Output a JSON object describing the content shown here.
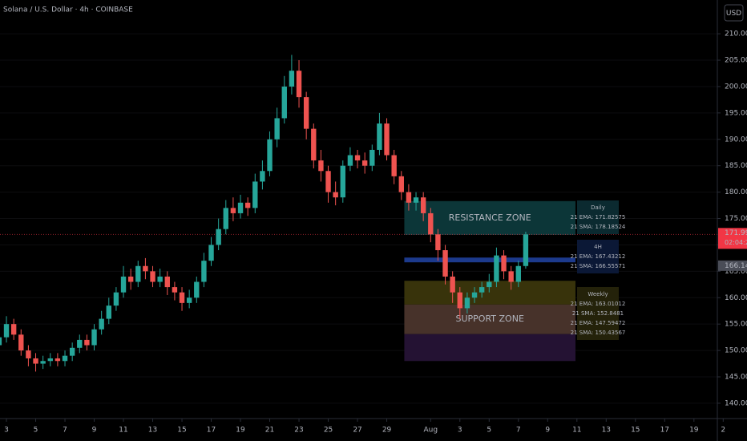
{
  "chart_data": {
    "type": "candlestick",
    "title": "Solana / U.S. Dollar · 4h · COINBASE",
    "currency": "USD",
    "x": [
      2.5,
      3,
      3.5,
      4,
      4.5,
      5,
      5.5,
      6,
      6.5,
      7,
      7.5,
      8,
      8.5,
      9,
      9.5,
      10,
      10.5,
      11,
      11.5,
      12,
      12.5,
      13,
      13.5,
      14,
      14.5,
      15,
      15.5,
      16,
      16.5,
      17,
      17.5,
      18,
      18.5,
      19,
      19.5,
      20,
      20.5,
      21,
      21.5,
      22,
      22.5,
      23,
      23.5,
      24,
      24.5,
      25,
      25.5,
      26,
      26.5,
      27,
      27.5,
      28,
      28.5,
      29,
      29.5,
      30,
      30.5,
      31,
      31.5,
      32,
      32.5,
      33,
      33.5,
      34,
      34.5,
      35,
      35.5,
      36,
      36.5,
      37,
      37.5,
      38,
      38.5
    ],
    "open": [
      151,
      152.5,
      155,
      153,
      150,
      148.5,
      147.5,
      148,
      148.5,
      148,
      149,
      150.5,
      152,
      151,
      154,
      156,
      158.5,
      161,
      164,
      163,
      166,
      165,
      163,
      164,
      162,
      161,
      159,
      160,
      163,
      167,
      170,
      173,
      177,
      176,
      178,
      177,
      182,
      184,
      190,
      194,
      200,
      203,
      198,
      192,
      186,
      184,
      180,
      179,
      185,
      187,
      186,
      185,
      188,
      193,
      187,
      183,
      180,
      178,
      179,
      176,
      172,
      169,
      164,
      161,
      158,
      160,
      161,
      162,
      163,
      168,
      165,
      163,
      166
    ],
    "high": [
      154,
      156.5,
      156,
      154,
      151,
      149.5,
      149,
      149.5,
      149.5,
      150,
      151.5,
      153,
      153,
      155,
      157.5,
      160,
      162,
      166,
      165.5,
      167,
      167.5,
      166,
      165.5,
      165,
      163,
      162,
      161.5,
      164,
      168.5,
      171.5,
      175,
      178.5,
      179,
      179.5,
      179,
      183.5,
      186,
      191.5,
      196,
      202,
      206,
      205,
      199,
      193,
      188,
      185,
      182,
      186,
      188.5,
      188,
      187.5,
      189,
      195,
      194,
      188,
      184,
      181.5,
      180,
      180,
      177,
      173,
      170,
      165,
      162,
      161,
      162,
      163,
      164.5,
      169.5,
      169,
      166,
      167,
      172.5
    ],
    "low": [
      150,
      151.5,
      152,
      149,
      147,
      146,
      146.5,
      147,
      147,
      147,
      148,
      149.5,
      150,
      150,
      153,
      155,
      157.5,
      160,
      161.5,
      162,
      163.5,
      162,
      162,
      160.5,
      159.5,
      157.5,
      158,
      159,
      162,
      166,
      169,
      172,
      174.5,
      175,
      175.5,
      176,
      180.5,
      183,
      188.5,
      193,
      198.5,
      196,
      190,
      184.5,
      182,
      178,
      177.5,
      178,
      184,
      184.5,
      183.5,
      184,
      187,
      186,
      181.5,
      178.5,
      176.5,
      176.5,
      174.5,
      170.5,
      167,
      162.5,
      159,
      156,
      157,
      159,
      160,
      161,
      162,
      163.5,
      161.5,
      162,
      165.5
    ],
    "close": [
      152.5,
      155,
      153,
      150,
      148.5,
      147.5,
      148,
      148.5,
      148,
      149,
      150.5,
      152,
      151,
      154,
      156,
      158.5,
      161,
      164,
      163,
      166,
      165,
      163,
      164,
      162,
      161,
      159,
      160,
      163,
      167,
      170,
      173,
      177,
      176,
      178,
      177,
      182,
      184,
      190,
      194,
      200,
      203,
      198,
      192,
      186,
      184,
      180,
      179,
      185,
      187,
      186,
      185,
      188,
      193,
      187,
      183,
      180,
      178,
      179,
      176,
      172,
      169,
      164,
      161,
      158,
      160,
      161,
      162,
      163,
      168,
      165,
      163,
      166,
      171.99
    ],
    "up_color": "#26a69a",
    "down_color": "#ef5350",
    "xlim": [
      2.56,
      51.6
    ],
    "xticks": [
      3,
      5,
      7,
      9,
      11,
      13,
      15,
      17,
      19,
      21,
      23,
      25,
      27,
      29,
      {
        "value": 32,
        "label": "Aug"
      },
      {
        "value": 34,
        "label": "3"
      },
      {
        "value": 36,
        "label": "5"
      },
      {
        "value": 38,
        "label": "7"
      },
      {
        "value": 40,
        "label": "9"
      },
      {
        "value": 42,
        "label": "11"
      },
      {
        "value": 44,
        "label": "13"
      },
      {
        "value": 46,
        "label": "15"
      },
      {
        "value": 48,
        "label": "17"
      },
      {
        "value": 50,
        "label": "19"
      },
      {
        "value": 52,
        "label": "2"
      }
    ],
    "ylim": [
      137.1,
      216.4
    ],
    "yticks": [
      {
        "value": 140,
        "label": "140.00"
      },
      {
        "value": 145,
        "label": "145.00"
      },
      {
        "value": 150,
        "label": "150.00"
      },
      {
        "value": 155,
        "label": "155.00"
      },
      {
        "value": 160,
        "label": "160.00"
      },
      {
        "value": 165,
        "label": "165.00"
      },
      {
        "value": 170,
        "label": "170.00"
      },
      {
        "value": 175,
        "label": "175.00"
      },
      {
        "value": 180,
        "label": "180.00"
      },
      {
        "value": 185,
        "label": "185.00"
      },
      {
        "value": 190,
        "label": "190.00"
      },
      {
        "value": 195,
        "label": "195.00"
      },
      {
        "value": 200,
        "label": "200.00"
      },
      {
        "value": 205,
        "label": "205.00"
      },
      {
        "value": 210,
        "label": "210.00"
      }
    ],
    "last_price": 171.99,
    "last_price_color": "#f23645",
    "countdown": "02:04:22",
    "price_marker": 166.14,
    "zone_x": [
      30.2,
      41.9
    ],
    "zones": [
      {
        "label": "RESISTANCE ZONE",
        "label_color": "#f23645",
        "range": [
          171.9,
          178.3
        ],
        "color": "#0c3638"
      },
      {
        "range": [
          166.7,
          167.6
        ],
        "color": "#1c3a8c"
      },
      {
        "range": [
          158.7,
          163.2
        ],
        "color": "#38330b"
      },
      {
        "label": "SUPPORT ZONE",
        "label_color": "#4caf50",
        "range": [
          153.1,
          158.7
        ],
        "color": "#47322a"
      },
      {
        "range": [
          148.0,
          153.1
        ],
        "color": "#241233"
      }
    ],
    "panels": [
      {
        "title": "Daily",
        "lines": [
          "21 EMA: 171.82575",
          "21 SMA: 178.18524"
        ],
        "line_colors": [
          "#8fb8c8",
          "#8fb8c8"
        ],
        "color": "#8fb8c8",
        "background": "#0b2a30"
      },
      {
        "title": "4H",
        "lines": [
          "21 EMA: 167.43212",
          "21 SMA: 166.55571"
        ],
        "line_colors": [
          "#5b7bd6",
          "#5b7bd6"
        ],
        "color": "#5b7bd6",
        "background": "#0b1836"
      },
      {
        "title": "Weekly",
        "lines": [
          "21 EMA: 163.01012",
          "21 SMA: 152.8481",
          "21 EMA: 147.59472",
          "21 SMA: 150.43567"
        ],
        "line_colors": [
          "#d4c04a",
          "#d4c04a",
          "#b04fc8",
          "#b04fc8"
        ],
        "color": "#d4c04a",
        "background": "#24220a"
      }
    ]
  }
}
